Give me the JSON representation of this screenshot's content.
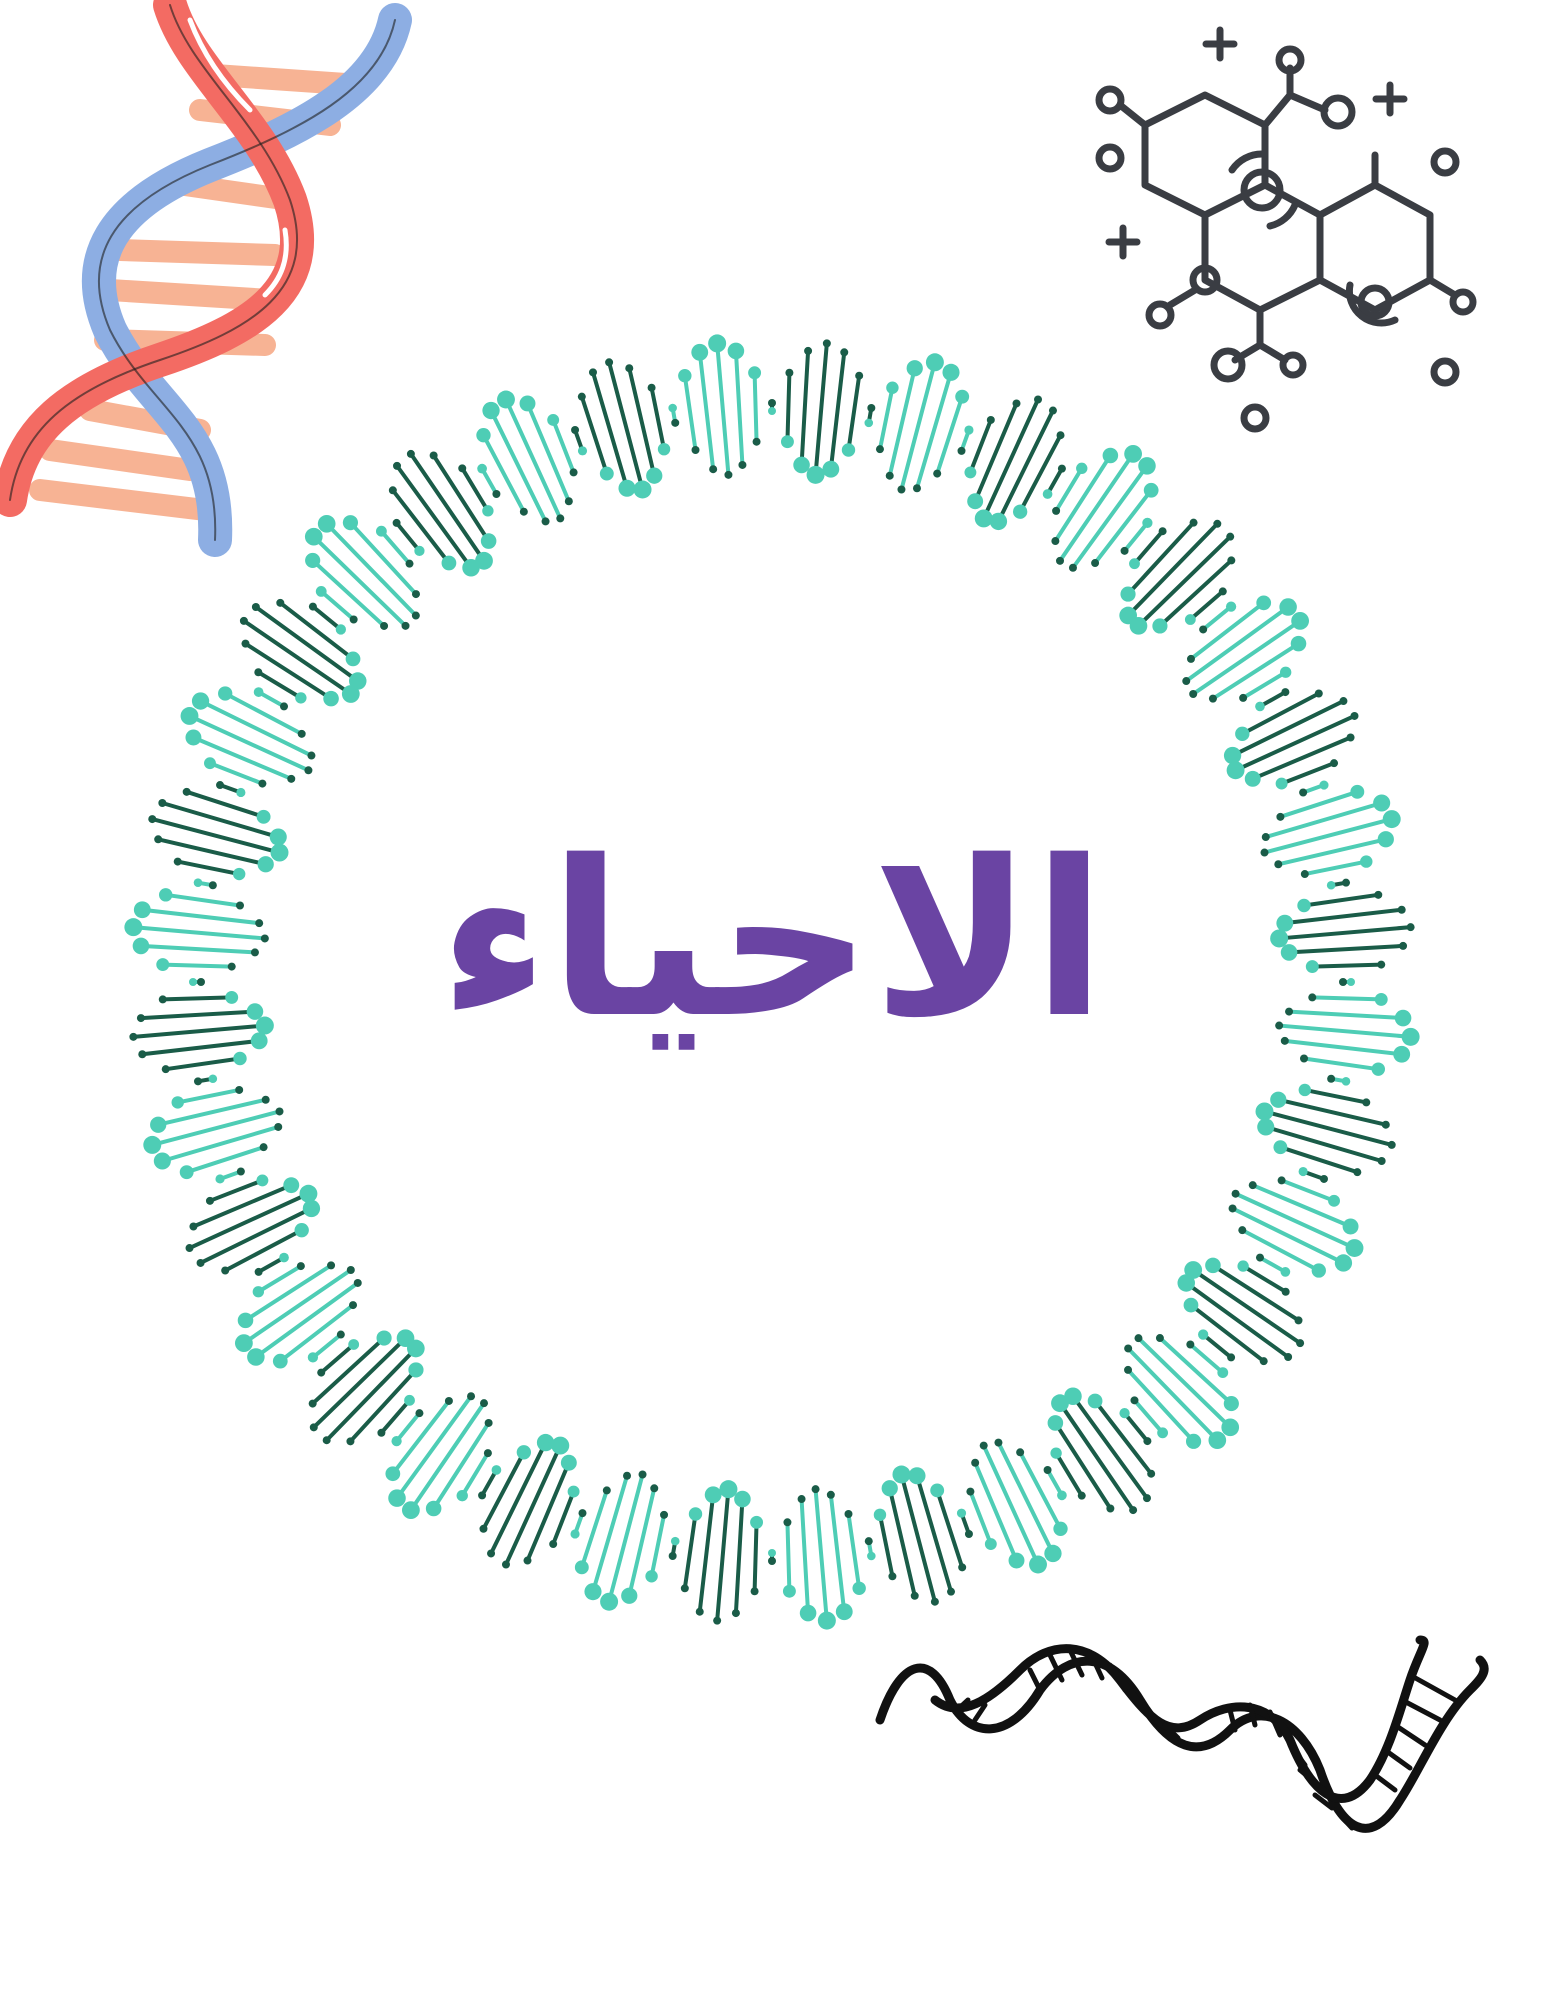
{
  "title": "الاحياء",
  "colors": {
    "title": "#6a44a3",
    "ring_light": "#4ecdb5",
    "ring_dark": "#1a5c48",
    "helix_red": "#f36b63",
    "helix_blue": "#8daee3",
    "helix_rung": "#f7b394",
    "molecule": "#3a3d43",
    "bottom_helix": "#111111"
  },
  "icons": [
    "dna-helix-icon",
    "molecule-icon",
    "dna-ring-icon",
    "dna-strand-icon"
  ]
}
